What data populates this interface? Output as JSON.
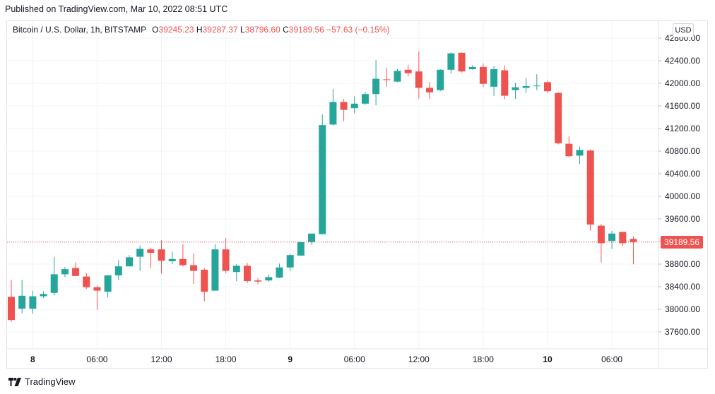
{
  "header": {
    "published": "Published on TradingView.com, Mar 10, 2022 08:51 UTC"
  },
  "legend": {
    "symbol": "Bitcoin / U.S. Dollar, 1h, BITSTAMP",
    "o_label": "O",
    "o_value": "39245.23",
    "h_label": "H",
    "h_value": "39287.37",
    "l_label": "L",
    "l_value": "38796.60",
    "c_label": "C",
    "c_value": "39189.56",
    "change": "−57.63 (−0.15%)"
  },
  "currency_button": "USD",
  "last_price_label": "39189.56",
  "footer": {
    "brand": "TradingView"
  },
  "colors": {
    "up": "#26a69a",
    "down": "#ef5350",
    "grid": "#f0f3fa",
    "axis_text": "#131722"
  },
  "chart_data": {
    "type": "candlestick",
    "ylim": [
      37300,
      43100
    ],
    "y_ticks": [
      "42800.00",
      "42400.00",
      "42000.00",
      "41600.00",
      "41200.00",
      "40800.00",
      "40400.00",
      "40000.00",
      "39600.00",
      "39200.00",
      "38800.00",
      "38400.00",
      "38000.00",
      "37600.00"
    ],
    "x_ticks": [
      {
        "index": 2,
        "label": "8"
      },
      {
        "index": 8,
        "label": "06:00"
      },
      {
        "index": 14,
        "label": "12:00"
      },
      {
        "index": 20,
        "label": "18:00"
      },
      {
        "index": 26,
        "label": "9"
      },
      {
        "index": 32,
        "label": "06:00"
      },
      {
        "index": 38,
        "label": "12:00"
      },
      {
        "index": 44,
        "label": "18:00"
      },
      {
        "index": 50,
        "label": "10"
      },
      {
        "index": 56,
        "label": "06:00"
      }
    ],
    "last_price": 39189.56,
    "candles": [
      [
        38220,
        38520,
        37780,
        37810
      ],
      [
        38010,
        38520,
        37930,
        38240
      ],
      [
        38010,
        38330,
        37920,
        38230
      ],
      [
        38230,
        38320,
        38200,
        38270
      ],
      [
        38290,
        38930,
        38250,
        38620
      ],
      [
        38620,
        38750,
        38570,
        38710
      ],
      [
        38730,
        38830,
        38590,
        38590
      ],
      [
        38580,
        38640,
        38360,
        38390
      ],
      [
        38390,
        38420,
        37990,
        38330
      ],
      [
        38310,
        38600,
        38210,
        38600
      ],
      [
        38600,
        38870,
        38520,
        38760
      ],
      [
        38760,
        38960,
        38760,
        38920
      ],
      [
        38930,
        39130,
        38680,
        39070
      ],
      [
        39060,
        39090,
        38730,
        39000
      ],
      [
        39060,
        39220,
        38630,
        38860
      ],
      [
        38850,
        39020,
        38800,
        38890
      ],
      [
        38890,
        39150,
        38760,
        38780
      ],
      [
        38780,
        38990,
        38450,
        38680
      ],
      [
        38700,
        38730,
        38140,
        38310
      ],
      [
        38330,
        39150,
        38330,
        39060
      ],
      [
        39060,
        39260,
        38640,
        38680
      ],
      [
        38660,
        38800,
        38500,
        38770
      ],
      [
        38770,
        38820,
        38460,
        38500
      ],
      [
        38510,
        38550,
        38440,
        38490
      ],
      [
        38510,
        38620,
        38490,
        38570
      ],
      [
        38560,
        38810,
        38550,
        38740
      ],
      [
        38740,
        38980,
        38680,
        38960
      ],
      [
        38950,
        39190,
        38950,
        39190
      ],
      [
        39190,
        39340,
        39140,
        39340
      ],
      [
        39330,
        41450,
        39330,
        41260
      ],
      [
        41270,
        41900,
        41250,
        41670
      ],
      [
        41670,
        41720,
        41330,
        41530
      ],
      [
        41560,
        41770,
        41470,
        41640
      ],
      [
        41640,
        41850,
        41620,
        41810
      ],
      [
        41810,
        42410,
        41610,
        42080
      ],
      [
        42070,
        42270,
        41940,
        42060
      ],
      [
        42030,
        42250,
        42020,
        42220
      ],
      [
        42240,
        42330,
        42120,
        42180
      ],
      [
        42210,
        42570,
        41730,
        41920
      ],
      [
        41920,
        42020,
        41720,
        41840
      ],
      [
        41880,
        42250,
        41860,
        42240
      ],
      [
        42240,
        42550,
        42170,
        42530
      ],
      [
        42540,
        42550,
        42190,
        42210
      ],
      [
        42250,
        42320,
        42240,
        42290
      ],
      [
        42290,
        42350,
        41940,
        41990
      ],
      [
        41940,
        42300,
        41780,
        42250
      ],
      [
        42230,
        42320,
        41720,
        41780
      ],
      [
        41880,
        42010,
        41720,
        41930
      ],
      [
        41920,
        42090,
        41830,
        41950
      ],
      [
        41950,
        42160,
        41880,
        41960
      ],
      [
        42020,
        42050,
        41830,
        41860
      ],
      [
        41830,
        41840,
        40920,
        40940
      ],
      [
        40930,
        41060,
        40690,
        40710
      ],
      [
        40720,
        40880,
        40570,
        40820
      ],
      [
        40810,
        40830,
        39390,
        39500
      ],
      [
        39480,
        39510,
        38830,
        39170
      ],
      [
        39210,
        39390,
        39070,
        39340
      ],
      [
        39370,
        39370,
        39120,
        39170
      ],
      [
        39245.23,
        39287.37,
        38796.6,
        39189.56
      ]
    ]
  }
}
